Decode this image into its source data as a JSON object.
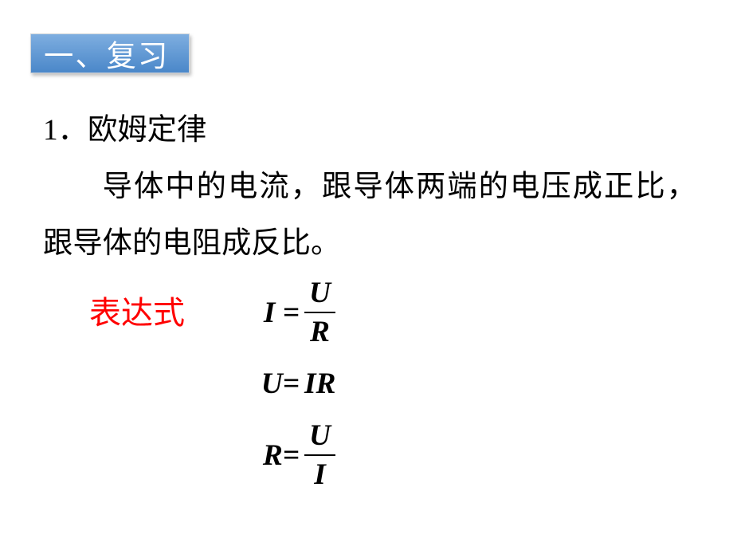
{
  "banner": {
    "text": "一、复习",
    "bg_gradient_top": "#7eaee0",
    "bg_gradient_bottom": "#4a87c9",
    "border_color": "#d0d5da",
    "text_color": "#ffffff",
    "font_size_pt": 28
  },
  "section": {
    "number": "1．",
    "title": "欧姆定律",
    "font_size_pt": 28,
    "color": "#000000"
  },
  "paragraph": {
    "text": "导体中的电流，跟导体两端的电压成正比，跟导体的电阻成反比。",
    "font_size_pt": 28,
    "color": "#000000"
  },
  "expression_label": {
    "text": "表达式",
    "color": "#ff0000",
    "font_size_pt": 30
  },
  "formulas": {
    "font_size_pt": 28,
    "color": "#000000",
    "f1": {
      "lhs": "I =",
      "num": "U",
      "den": "R"
    },
    "f2": {
      "lhs": "U=",
      "rhs": " IR"
    },
    "f3": {
      "lhs": "R=",
      "num": "U",
      "den": "I"
    }
  }
}
